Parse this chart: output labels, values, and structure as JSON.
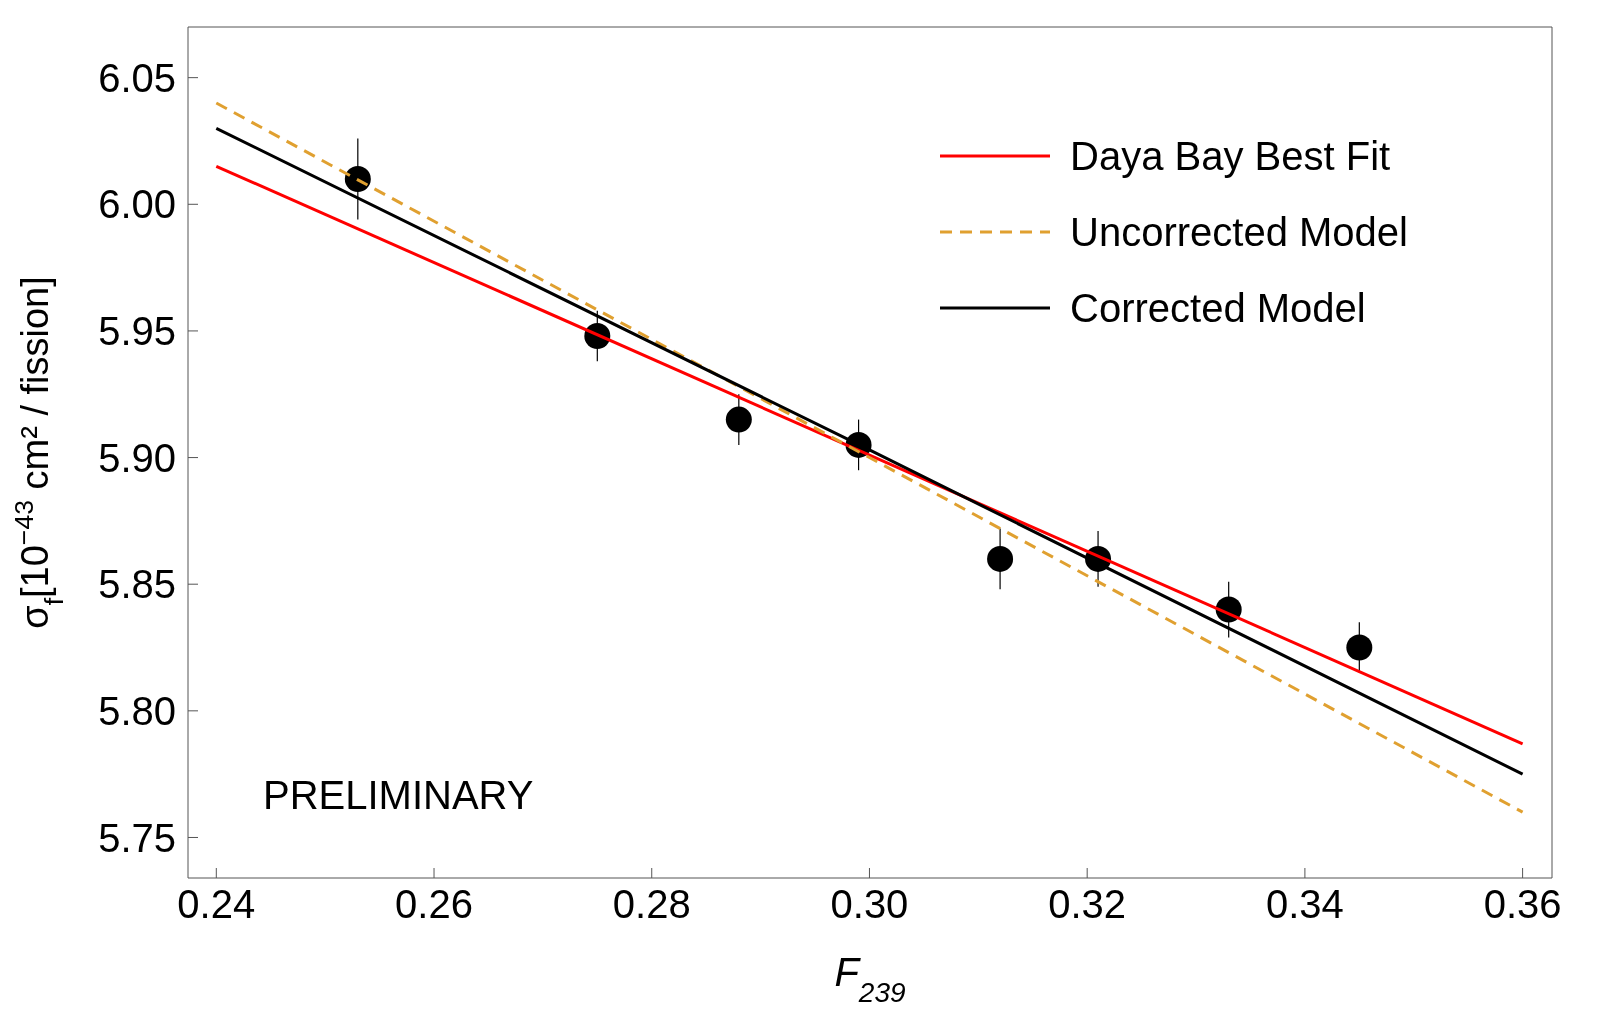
{
  "chart_data": {
    "type": "scatter",
    "xlabel": "F$_{239}$",
    "ylabel": "σ$_{f}$[10$^{−43}$ cm² / fission]",
    "xlim": [
      0.2374,
      0.3627
    ],
    "ylim": [
      5.734,
      6.07
    ],
    "xticks": [
      {
        "value": 0.24,
        "label": "0.24"
      },
      {
        "value": 0.26,
        "label": "0.26"
      },
      {
        "value": 0.28,
        "label": "0.28"
      },
      {
        "value": 0.3,
        "label": "0.30"
      },
      {
        "value": 0.32,
        "label": "0.32"
      },
      {
        "value": 0.34,
        "label": "0.34"
      },
      {
        "value": 0.36,
        "label": "0.36"
      }
    ],
    "yticks": [
      {
        "value": 5.75,
        "label": "5.75"
      },
      {
        "value": 5.8,
        "label": "5.80"
      },
      {
        "value": 5.85,
        "label": "5.85"
      },
      {
        "value": 5.9,
        "label": "5.90"
      },
      {
        "value": 5.95,
        "label": "5.95"
      },
      {
        "value": 6.0,
        "label": "6.00"
      },
      {
        "value": 6.05,
        "label": "6.05"
      }
    ],
    "legend": "top right",
    "annotations": [
      "PRELIMINARY"
    ],
    "series": [
      {
        "color": "#000000",
        "marker": "circle",
        "x": [
          0.253,
          0.275,
          0.288,
          0.299,
          0.312,
          0.321,
          0.333,
          0.345
        ],
        "values": [
          6.01,
          5.948,
          5.915,
          5.905,
          5.86,
          5.86,
          5.84,
          5.825
        ],
        "errors": [
          0.016,
          0.01,
          0.01,
          0.01,
          0.012,
          0.011,
          0.011,
          0.01
        ]
      },
      {
        "type": "line",
        "name": "Daya Bay Best Fit",
        "color": "#ff0000",
        "line_style": "solid",
        "x": [
          0.24,
          0.36
        ],
        "values": [
          6.015,
          5.787
        ]
      },
      {
        "type": "line",
        "name": "Uncorrected Model",
        "color": "#e0a030",
        "line_style": "dashed",
        "x": [
          0.24,
          0.36
        ],
        "values": [
          6.04,
          5.76
        ]
      },
      {
        "type": "line",
        "name": "Corrected Model",
        "color": "#000000",
        "line_style": "solid",
        "x": [
          0.24,
          0.3,
          0.36
        ],
        "values": [
          6.03,
          5.903,
          5.775
        ]
      }
    ]
  }
}
